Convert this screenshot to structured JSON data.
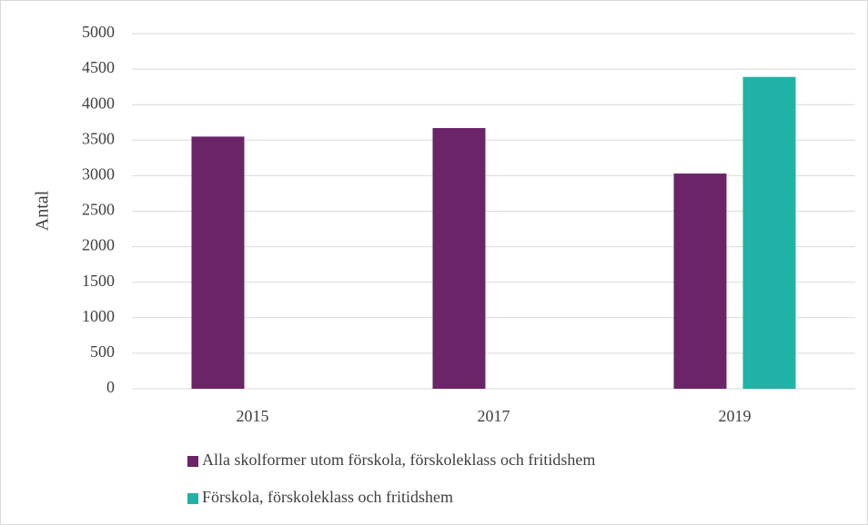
{
  "chart_data": {
    "type": "bar",
    "categories": [
      "2015",
      "2017",
      "2019"
    ],
    "series": [
      {
        "name": "Alla skolformer utom förskola, förskoleklass och fritidshem",
        "color": "#6b2467",
        "values": [
          3550,
          3670,
          3030
        ]
      },
      {
        "name": "Förskola, förskoleklass och fritidshem",
        "color": "#20b2a6",
        "values": [
          null,
          null,
          4390
        ]
      }
    ],
    "ylabel": "Antal",
    "ylim": [
      0,
      5000
    ],
    "yticks": [
      0,
      500,
      1000,
      1500,
      2000,
      2500,
      3000,
      3500,
      4000,
      4500,
      5000
    ],
    "grid": true,
    "legend": "bottom"
  }
}
